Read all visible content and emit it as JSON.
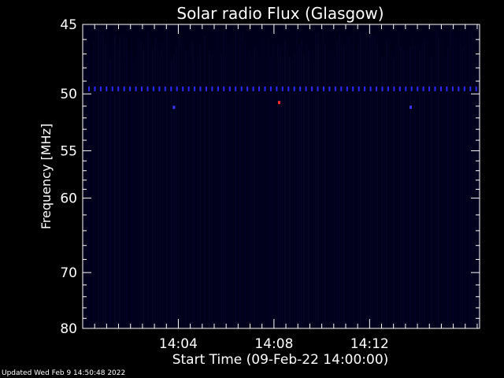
{
  "chart_data": {
    "type": "heatmap",
    "title": "Solar radio Flux (Glasgow)",
    "xlabel": "Start Time (09-Feb-22 14:00:00)",
    "ylabel": "Frequency [MHz]",
    "x_unit": "minutes after 14:00:00",
    "xlim": [
      0,
      16.6
    ],
    "ylim": [
      45,
      80
    ],
    "y_scale": "reciprocal",
    "x_ticks": [
      {
        "value": 4,
        "label": "14:04"
      },
      {
        "value": 8,
        "label": "14:08"
      },
      {
        "value": 12,
        "label": "14:12"
      }
    ],
    "y_ticks": [
      {
        "value": 45,
        "label": "45"
      },
      {
        "value": 50,
        "label": "50"
      },
      {
        "value": 55,
        "label": "55"
      },
      {
        "value": 60,
        "label": "60"
      },
      {
        "value": 70,
        "label": "70"
      },
      {
        "value": 80,
        "label": "80"
      }
    ],
    "background_color": "#00001a",
    "interference_band": {
      "frequency_mhz": 49.6,
      "color": "#2a2aff"
    },
    "bright_spots": [
      {
        "x": 3.8,
        "y": 51.1,
        "color": "#3a3aff"
      },
      {
        "x": 8.2,
        "y": 50.7,
        "color": "#ff2a2a"
      },
      {
        "x": 13.7,
        "y": 51.1,
        "color": "#3a3aff"
      }
    ]
  },
  "footer": {
    "updated": "Updated Wed Feb  9 14:50:48 2022"
  }
}
